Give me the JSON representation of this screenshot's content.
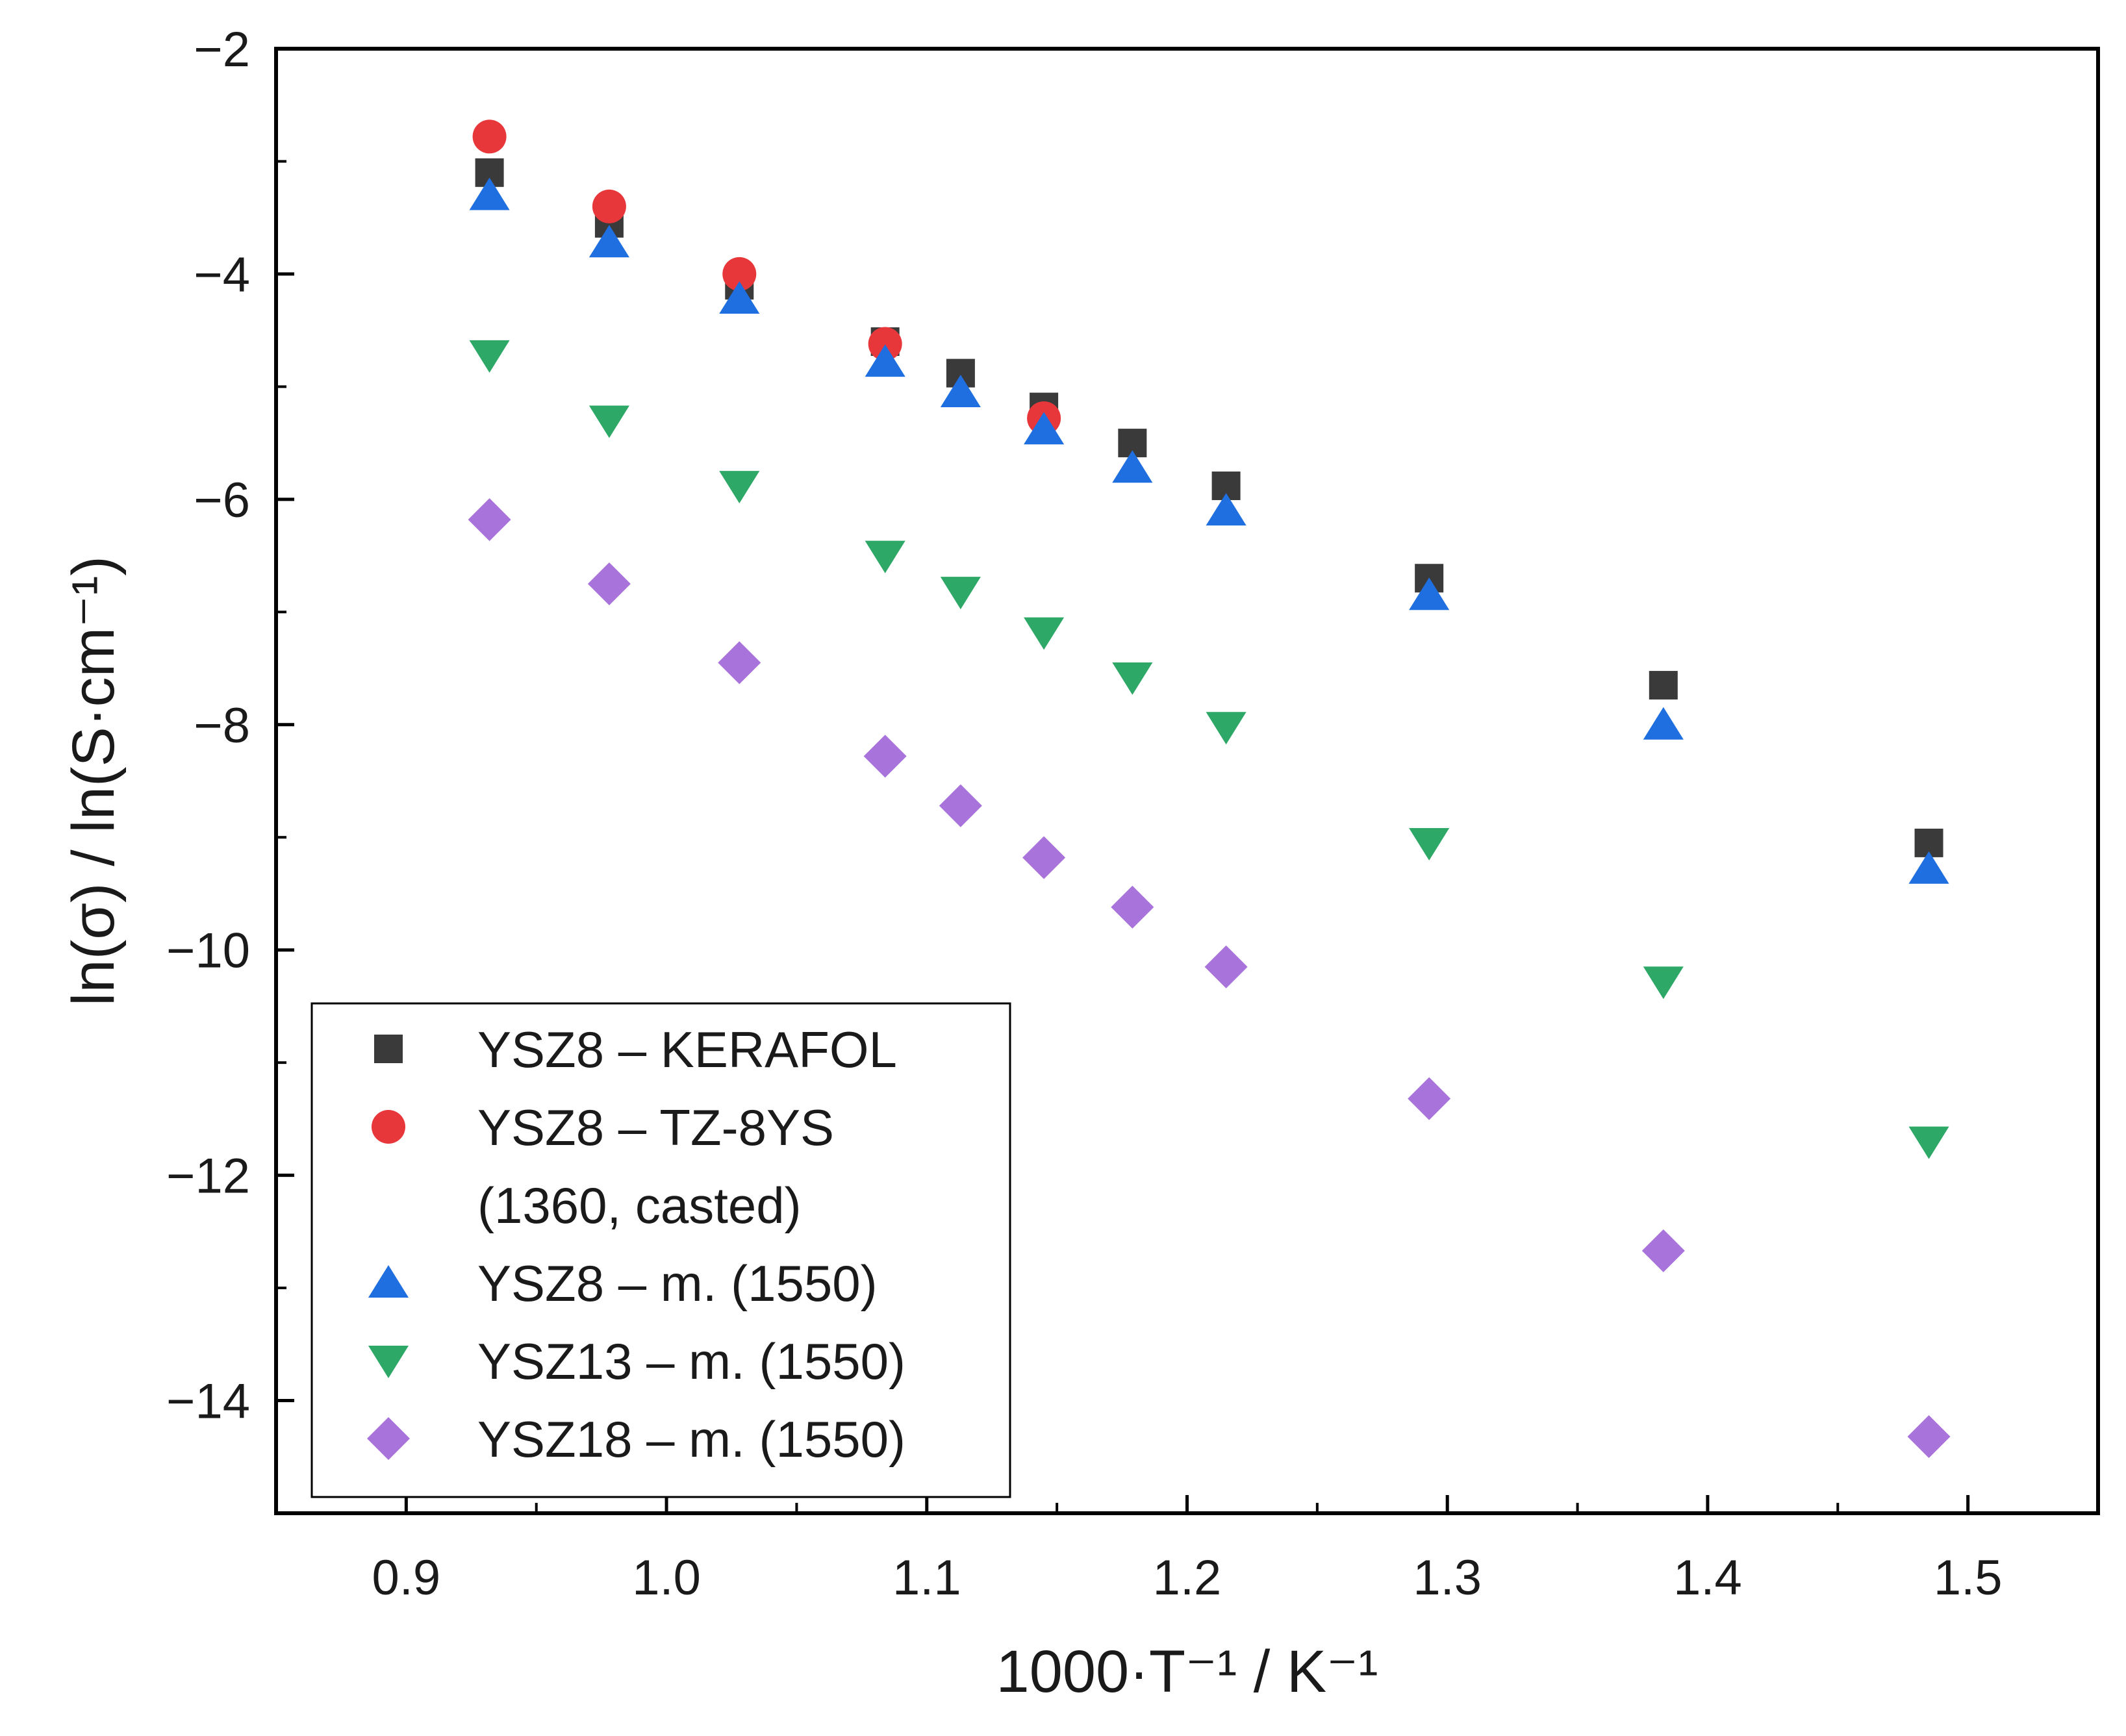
{
  "chart_data": {
    "type": "scatter",
    "title": "",
    "xlabel": "1000·T⁻¹ / K⁻¹",
    "ylabel": "ln(σ) / ln(S·cm⁻¹)",
    "xlim": [
      0.85,
      1.55
    ],
    "ylim": [
      -15,
      -2
    ],
    "grid": false,
    "legend_position": "bottom-left",
    "x_ticks": [
      {
        "value": 0.9,
        "label": "0.9"
      },
      {
        "value": 1.0,
        "label": "1.0"
      },
      {
        "value": 1.1,
        "label": "1.1"
      },
      {
        "value": 1.2,
        "label": "1.2"
      },
      {
        "value": 1.3,
        "label": "1.3"
      },
      {
        "value": 1.4,
        "label": "1.4"
      },
      {
        "value": 1.5,
        "label": "1.5"
      }
    ],
    "y_ticks": [
      {
        "value": -2,
        "label": "−2"
      },
      {
        "value": -4,
        "label": "−4"
      },
      {
        "value": -6,
        "label": "−6"
      },
      {
        "value": -8,
        "label": "−8"
      },
      {
        "value": -10,
        "label": "−10"
      },
      {
        "value": -12,
        "label": "−12"
      },
      {
        "value": -14,
        "label": "−14"
      }
    ],
    "series": [
      {
        "name": "YSZ8 – KERAFOL",
        "marker": "square",
        "color": "#3a3a3a",
        "x": [
          0.932,
          0.978,
          1.028,
          1.084,
          1.113,
          1.145,
          1.179,
          1.215,
          1.293,
          1.383,
          1.485
        ],
        "y": [
          -3.1,
          -3.55,
          -4.1,
          -4.6,
          -4.88,
          -5.18,
          -5.5,
          -5.88,
          -6.7,
          -7.65,
          -9.05
        ]
      },
      {
        "name": "YSZ8 – TZ-8YS (1360, casted)",
        "label_lines": [
          "YSZ8 – TZ-8YS",
          "(1360, casted)"
        ],
        "marker": "circle",
        "color": "#e8373a",
        "x": [
          0.932,
          0.978,
          1.028,
          1.084,
          1.145
        ],
        "y": [
          -2.78,
          -3.4,
          -4.0,
          -4.62,
          -5.28
        ]
      },
      {
        "name": "YSZ8 – m. (1550)",
        "marker": "triangle-up",
        "color": "#1f6fe0",
        "x": [
          0.932,
          0.978,
          1.028,
          1.084,
          1.113,
          1.145,
          1.179,
          1.215,
          1.293,
          1.383,
          1.485
        ],
        "y": [
          -3.3,
          -3.72,
          -4.22,
          -4.78,
          -5.05,
          -5.38,
          -5.72,
          -6.1,
          -6.85,
          -8.0,
          -9.28
        ]
      },
      {
        "name": "YSZ13 – m. (1550)",
        "marker": "triangle-down",
        "color": "#2ea866",
        "x": [
          0.932,
          0.978,
          1.028,
          1.084,
          1.113,
          1.145,
          1.179,
          1.215,
          1.293,
          1.383,
          1.485
        ],
        "y": [
          -4.72,
          -5.3,
          -5.88,
          -6.5,
          -6.82,
          -7.18,
          -7.58,
          -8.02,
          -9.05,
          -10.28,
          -11.7
        ]
      },
      {
        "name": "YSZ18 – m. (1550)",
        "marker": "diamond",
        "color": "#a874dc",
        "x": [
          0.932,
          0.978,
          1.028,
          1.084,
          1.113,
          1.145,
          1.179,
          1.215,
          1.293,
          1.383,
          1.485
        ],
        "y": [
          -6.18,
          -6.75,
          -7.45,
          -8.28,
          -8.72,
          -9.18,
          -9.62,
          -10.15,
          -11.32,
          -12.67,
          -14.32
        ]
      }
    ]
  }
}
